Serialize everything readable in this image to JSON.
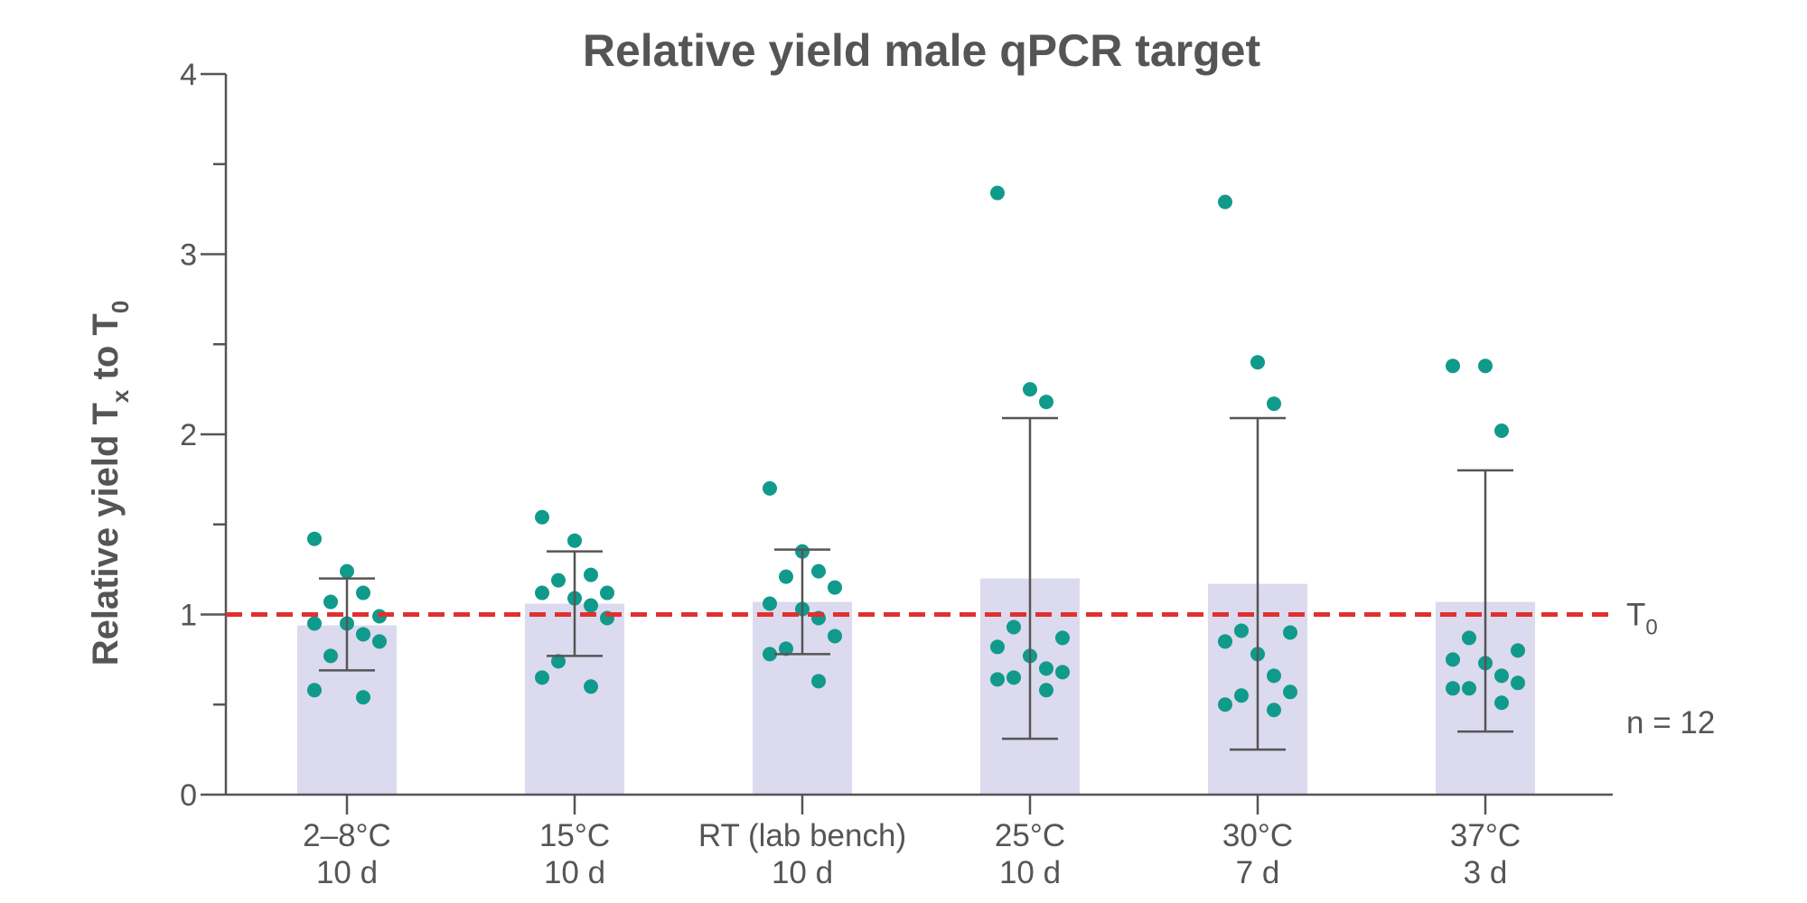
{
  "chart_data": {
    "type": "bar",
    "title": "Relative yield male qPCR target",
    "ylabel": {
      "main": "Relative yield T",
      "sub1": "x",
      "mid": " to T",
      "sub2": "0"
    },
    "xlabel": "",
    "ylim": [
      0,
      4
    ],
    "yticks": [
      0,
      1,
      2,
      3,
      4
    ],
    "ytick_labels": [
      "0",
      "1",
      "2",
      "3",
      "4"
    ],
    "minor_yticks": [
      0.5,
      1.5,
      2.5,
      3.5
    ],
    "reference_line": {
      "value": 1,
      "label": "T",
      "label_sub": "0",
      "color": "#e03030"
    },
    "annotation": "n = 12",
    "bar_color": "#dcdaee",
    "point_color": "#109a8c",
    "error_color": "#555555",
    "categories": [
      {
        "label1": "2–8°C",
        "label2": "10 d",
        "mean": 0.94,
        "err_low": 0.69,
        "err_high": 1.2,
        "points": [
          1.42,
          1.24,
          1.12,
          1.07,
          0.99,
          0.95,
          0.95,
          0.89,
          0.85,
          0.77,
          0.58,
          0.54
        ]
      },
      {
        "label1": "15°C",
        "label2": "10 d",
        "mean": 1.06,
        "err_low": 0.77,
        "err_high": 1.35,
        "points": [
          1.54,
          1.41,
          1.22,
          1.19,
          1.12,
          1.12,
          1.09,
          1.05,
          0.98,
          0.74,
          0.65,
          0.6
        ]
      },
      {
        "label1": "RT (lab bench)",
        "label2": "10 d",
        "mean": 1.07,
        "err_low": 0.78,
        "err_high": 1.36,
        "points": [
          1.7,
          1.35,
          1.24,
          1.21,
          1.15,
          1.06,
          1.03,
          0.98,
          0.88,
          0.81,
          0.78,
          0.63
        ]
      },
      {
        "label1": "25°C",
        "label2": "10 d",
        "mean": 1.2,
        "err_low": 0.31,
        "err_high": 2.09,
        "points": [
          3.34,
          2.25,
          2.18,
          0.93,
          0.87,
          0.82,
          0.77,
          0.7,
          0.68,
          0.65,
          0.64,
          0.58
        ]
      },
      {
        "label1": "30°C",
        "label2": "7 d",
        "mean": 1.17,
        "err_low": 0.25,
        "err_high": 2.09,
        "points": [
          3.29,
          2.4,
          2.17,
          0.91,
          0.9,
          0.85,
          0.78,
          0.66,
          0.57,
          0.55,
          0.5,
          0.47
        ]
      },
      {
        "label1": "37°C",
        "label2": "3 d",
        "mean": 1.07,
        "err_low": 0.35,
        "err_high": 1.8,
        "points": [
          2.38,
          2.38,
          2.02,
          0.87,
          0.8,
          0.75,
          0.73,
          0.66,
          0.62,
          0.59,
          0.59,
          0.51
        ]
      }
    ]
  }
}
